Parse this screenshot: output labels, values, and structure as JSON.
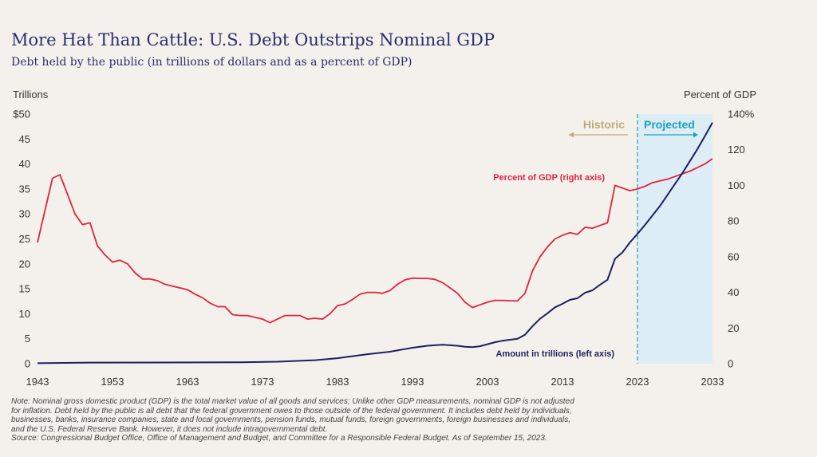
{
  "title": "More Hat Than Cattle: U.S. Debt Outstrips Nominal GDP",
  "subtitle": "Debt held by the public (in trillions of dollars and as a percent of GDP)",
  "notes": [
    "Note: Nominal gross domestic product (GDP) is the total market value of all goods and services; Unlike other GDP measurements, nominal GDP is not adjusted",
    "for inflation. Debt held by the public is all debt that the federal government owes to those outside of the federal government. It includes debt held by individuals,",
    "businesses, banks, insurance companies, state and local governments, pension funds, mutual funds, foreign governments, foreign businesses and individuals,",
    "and the U.S. Federal Reserve Bank. However, it does not include intragovernmental debt.",
    "Source: Congressional Budget Office, Office of Management and Budget, and Committee for a Responsible Federal Budget. As of September 15, 2023."
  ],
  "chart_data": {
    "type": "line",
    "xlim": [
      1943,
      2033
    ],
    "x_ticks": [
      "1943",
      "1953",
      "1963",
      "1973",
      "1983",
      "1993",
      "2003",
      "2013",
      "2023",
      "2033"
    ],
    "y_left": {
      "label": "Trillions",
      "range": [
        0,
        50
      ],
      "ticks": [
        {
          "value": 50,
          "label": "$50"
        },
        {
          "value": 45,
          "label": "45"
        },
        {
          "value": 40,
          "label": "40"
        },
        {
          "value": 35,
          "label": "35"
        },
        {
          "value": 30,
          "label": "30"
        },
        {
          "value": 25,
          "label": "25"
        },
        {
          "value": 20,
          "label": "20"
        },
        {
          "value": 15,
          "label": "15"
        },
        {
          "value": 10,
          "label": "10"
        },
        {
          "value": 5,
          "label": "5"
        },
        {
          "value": 0,
          "label": "0"
        }
      ]
    },
    "y_right": {
      "label": "Percent of GDP",
      "range": [
        0,
        140
      ],
      "ticks": [
        {
          "value": 140,
          "label": "140%"
        },
        {
          "value": 120,
          "label": "120"
        },
        {
          "value": 100,
          "label": "100"
        },
        {
          "value": 80,
          "label": "80"
        },
        {
          "value": 60,
          "label": "60"
        },
        {
          "value": 40,
          "label": "40"
        },
        {
          "value": 20,
          "label": "20"
        },
        {
          "value": 0,
          "label": "0"
        }
      ]
    },
    "projection_start": 2023,
    "annotations": {
      "historic": "Historic",
      "projected": "Projected"
    },
    "series": [
      {
        "name": "Percent of GDP (right axis)",
        "axis": "right",
        "color": "#e0233f",
        "points": [
          [
            1943,
            68
          ],
          [
            1944,
            86
          ],
          [
            1945,
            104
          ],
          [
            1946,
            106
          ],
          [
            1947,
            95
          ],
          [
            1948,
            84
          ],
          [
            1949,
            78
          ],
          [
            1950,
            79
          ],
          [
            1951,
            66
          ],
          [
            1952,
            61
          ],
          [
            1953,
            57
          ],
          [
            1954,
            58
          ],
          [
            1955,
            56
          ],
          [
            1956,
            51
          ],
          [
            1957,
            47.5
          ],
          [
            1958,
            47.5
          ],
          [
            1959,
            46.5
          ],
          [
            1960,
            44.5
          ],
          [
            1961,
            43.5
          ],
          [
            1962,
            42.5
          ],
          [
            1963,
            41.5
          ],
          [
            1964,
            39
          ],
          [
            1965,
            37
          ],
          [
            1966,
            34
          ],
          [
            1967,
            32
          ],
          [
            1968,
            32
          ],
          [
            1969,
            27.5
          ],
          [
            1970,
            27
          ],
          [
            1971,
            27
          ],
          [
            1972,
            26
          ],
          [
            1973,
            25
          ],
          [
            1974,
            23
          ],
          [
            1975,
            25
          ],
          [
            1976,
            27
          ],
          [
            1977,
            27
          ],
          [
            1978,
            27
          ],
          [
            1979,
            25
          ],
          [
            1980,
            25.5
          ],
          [
            1981,
            25
          ],
          [
            1982,
            28
          ],
          [
            1983,
            32.5
          ],
          [
            1984,
            33.5
          ],
          [
            1985,
            36
          ],
          [
            1986,
            39
          ],
          [
            1987,
            40
          ],
          [
            1988,
            40
          ],
          [
            1989,
            39.5
          ],
          [
            1990,
            41
          ],
          [
            1991,
            44.5
          ],
          [
            1992,
            47
          ],
          [
            1993,
            48
          ],
          [
            1994,
            47.8
          ],
          [
            1995,
            47.8
          ],
          [
            1996,
            47.3
          ],
          [
            1997,
            45.5
          ],
          [
            1998,
            42.5
          ],
          [
            1999,
            39.5
          ],
          [
            2000,
            34.5
          ],
          [
            2001,
            31.5
          ],
          [
            2002,
            33
          ],
          [
            2003,
            34.5
          ],
          [
            2004,
            35.5
          ],
          [
            2005,
            35.5
          ],
          [
            2006,
            35.3
          ],
          [
            2007,
            35.2
          ],
          [
            2008,
            39.5
          ],
          [
            2009,
            52
          ],
          [
            2010,
            60
          ],
          [
            2011,
            65.5
          ],
          [
            2012,
            70
          ],
          [
            2013,
            72
          ],
          [
            2014,
            73.5
          ],
          [
            2015,
            72.5
          ],
          [
            2016,
            76.5
          ],
          [
            2017,
            76
          ],
          [
            2018,
            77.5
          ],
          [
            2019,
            79
          ],
          [
            2020,
            100
          ],
          [
            2021,
            98.5
          ],
          [
            2022,
            97
          ],
          [
            2023,
            98
          ],
          [
            2024,
            99.5
          ],
          [
            2025,
            101.5
          ],
          [
            2026,
            102.5
          ],
          [
            2027,
            103.5
          ],
          [
            2028,
            105
          ],
          [
            2029,
            106.5
          ],
          [
            2030,
            108
          ],
          [
            2031,
            110
          ],
          [
            2032,
            112
          ],
          [
            2033,
            115
          ]
        ]
      },
      {
        "name": "Amount in trillions (left axis)",
        "axis": "left",
        "color": "#1f1f5e",
        "points": [
          [
            1943,
            0.1
          ],
          [
            1950,
            0.22
          ],
          [
            1960,
            0.24
          ],
          [
            1970,
            0.28
          ],
          [
            1975,
            0.4
          ],
          [
            1980,
            0.7
          ],
          [
            1983,
            1.1
          ],
          [
            1985,
            1.5
          ],
          [
            1987,
            1.9
          ],
          [
            1990,
            2.4
          ],
          [
            1993,
            3.2
          ],
          [
            1995,
            3.6
          ],
          [
            1997,
            3.8
          ],
          [
            1999,
            3.6
          ],
          [
            2000,
            3.4
          ],
          [
            2001,
            3.3
          ],
          [
            2002,
            3.5
          ],
          [
            2003,
            3.9
          ],
          [
            2004,
            4.3
          ],
          [
            2005,
            4.6
          ],
          [
            2006,
            4.8
          ],
          [
            2007,
            5.0
          ],
          [
            2008,
            5.8
          ],
          [
            2009,
            7.5
          ],
          [
            2010,
            9.0
          ],
          [
            2011,
            10.1
          ],
          [
            2012,
            11.3
          ],
          [
            2013,
            12.0
          ],
          [
            2014,
            12.8
          ],
          [
            2015,
            13.1
          ],
          [
            2016,
            14.2
          ],
          [
            2017,
            14.7
          ],
          [
            2018,
            15.8
          ],
          [
            2019,
            16.8
          ],
          [
            2020,
            21.0
          ],
          [
            2021,
            22.3
          ],
          [
            2022,
            24.3
          ],
          [
            2023,
            26.0
          ],
          [
            2024,
            27.8
          ],
          [
            2025,
            29.7
          ],
          [
            2026,
            31.6
          ],
          [
            2027,
            33.8
          ],
          [
            2028,
            36.0
          ],
          [
            2029,
            38.2
          ],
          [
            2030,
            40.6
          ],
          [
            2031,
            43.0
          ],
          [
            2032,
            45.6
          ],
          [
            2033,
            48.3
          ]
        ]
      }
    ]
  }
}
